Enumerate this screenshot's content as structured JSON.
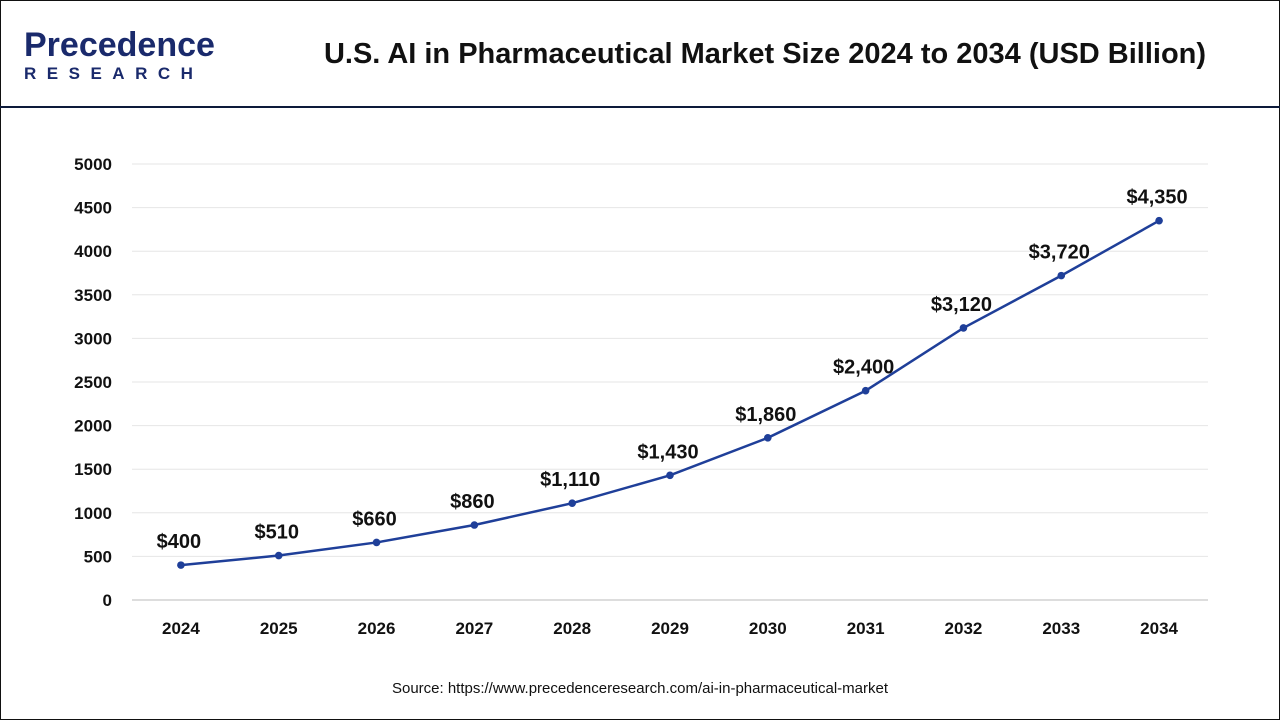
{
  "header": {
    "logo_text": "Precedence",
    "logo_subtext": "RESEARCH",
    "title": "U.S. AI in Pharmaceutical Market Size 2024 to 2034 (USD Billion)"
  },
  "chart_data": {
    "type": "line",
    "title": "U.S. AI in Pharmaceutical Market Size 2024 to 2034 (USD Billion)",
    "categories": [
      "2024",
      "2025",
      "2026",
      "2027",
      "2028",
      "2029",
      "2030",
      "2031",
      "2032",
      "2033",
      "2034"
    ],
    "values": [
      400,
      510,
      660,
      860,
      1110,
      1430,
      1860,
      2400,
      3120,
      3720,
      4350
    ],
    "data_labels": [
      "$400",
      "$510",
      "$660",
      "$860",
      "$1,110",
      "$1,430",
      "$1,860",
      "$2,400",
      "$3,120",
      "$3,720",
      "$4,350"
    ],
    "yticks": [
      0,
      500,
      1000,
      1500,
      2000,
      2500,
      3000,
      3500,
      4000,
      4500,
      5000
    ],
    "ylim": [
      0,
      5000
    ],
    "grid": true,
    "line_color": "#1f3f99",
    "xlabel": "",
    "ylabel": ""
  },
  "footer": {
    "source": "Source: https://www.precedenceresearch.com/ai-in-pharmaceutical-market"
  }
}
